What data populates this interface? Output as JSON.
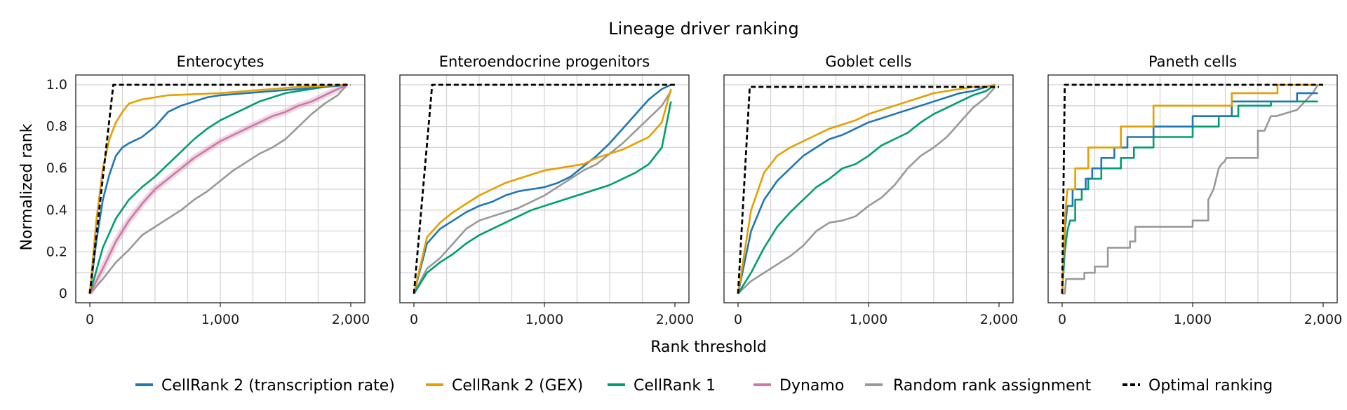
{
  "chart_data": {
    "type": "line",
    "title": "Lineage driver ranking",
    "xlabel": "Rank threshold",
    "ylabel": "Normalized rank",
    "xlim": [
      0,
      2000
    ],
    "ylim": [
      0,
      1.0
    ],
    "xticks": [
      0,
      1000,
      2000
    ],
    "xtick_labels": [
      "0",
      "1,000",
      "2,000"
    ],
    "yticks": [
      0,
      0.2,
      0.4,
      0.6,
      0.8,
      1.0
    ],
    "ytick_labels": [
      "0",
      "0.2",
      "0.4",
      "0.6",
      "0.8",
      "1.0"
    ],
    "grid": true,
    "legend_position": "bottom",
    "series_styles": [
      {
        "key": "cr2_tr",
        "name": "CellRank 2 (transcription rate)",
        "color": "#1f77b4",
        "dash": "solid"
      },
      {
        "key": "cr2_gex",
        "name": "CellRank 2 (GEX)",
        "color": "#e69f00",
        "dash": "solid"
      },
      {
        "key": "cr1",
        "name": "CellRank 1",
        "color": "#009e73",
        "dash": "solid"
      },
      {
        "key": "dynamo",
        "name": "Dynamo",
        "color": "#cc79a7",
        "dash": "solid"
      },
      {
        "key": "random",
        "name": "Random rank assignment",
        "color": "#999999",
        "dash": "solid"
      },
      {
        "key": "optimal",
        "name": "Optimal ranking",
        "color": "#000000",
        "dash": "dashed"
      }
    ],
    "panels": [
      {
        "title": "Enterocytes",
        "show_yticks": true,
        "series": [
          {
            "key": "optimal",
            "x": [
              0,
              180,
              2000
            ],
            "y": [
              0,
              1.0,
              1.0
            ]
          },
          {
            "key": "random",
            "x": [
              0,
              100,
              200,
              300,
              400,
              500,
              600,
              700,
              800,
              900,
              1000,
              1100,
              1200,
              1300,
              1400,
              1500,
              1600,
              1700,
              1800,
              1900,
              1970
            ],
            "y": [
              0,
              0.07,
              0.15,
              0.21,
              0.28,
              0.32,
              0.36,
              0.4,
              0.45,
              0.49,
              0.54,
              0.59,
              0.63,
              0.67,
              0.7,
              0.74,
              0.8,
              0.86,
              0.91,
              0.95,
              1.0
            ]
          },
          {
            "key": "dynamo",
            "x": [
              0,
              100,
              200,
              300,
              400,
              500,
              600,
              700,
              800,
              900,
              1000,
              1100,
              1200,
              1300,
              1400,
              1500,
              1600,
              1700,
              1800,
              1900,
              1970
            ],
            "y": [
              0,
              0.12,
              0.25,
              0.35,
              0.43,
              0.5,
              0.55,
              0.6,
              0.65,
              0.69,
              0.73,
              0.76,
              0.79,
              0.82,
              0.85,
              0.87,
              0.9,
              0.92,
              0.95,
              0.98,
              1.0
            ]
          },
          {
            "key": "cr1",
            "x": [
              0,
              100,
              200,
              300,
              400,
              500,
              600,
              700,
              800,
              900,
              1000,
              1100,
              1200,
              1300,
              1400,
              1500,
              1600,
              1700,
              1800,
              1900,
              1970
            ],
            "y": [
              0,
              0.22,
              0.36,
              0.45,
              0.51,
              0.56,
              0.62,
              0.68,
              0.74,
              0.79,
              0.83,
              0.86,
              0.89,
              0.92,
              0.94,
              0.96,
              0.97,
              0.98,
              0.99,
              0.995,
              1.0
            ]
          },
          {
            "key": "cr2_tr",
            "x": [
              0,
              50,
              100,
              150,
              200,
              250,
              300,
              400,
              500,
              600,
              700,
              800,
              900,
              1000,
              1200,
              1400,
              1600,
              1800,
              1970
            ],
            "y": [
              0,
              0.25,
              0.45,
              0.57,
              0.66,
              0.7,
              0.72,
              0.75,
              0.8,
              0.87,
              0.9,
              0.92,
              0.94,
              0.95,
              0.96,
              0.97,
              0.98,
              0.99,
              1.0
            ]
          },
          {
            "key": "cr2_gex",
            "x": [
              0,
              50,
              100,
              150,
              200,
              250,
              300,
              400,
              500,
              600,
              800,
              1000,
              1200,
              1400,
              1600,
              1800,
              1970
            ],
            "y": [
              0,
              0.35,
              0.6,
              0.74,
              0.82,
              0.87,
              0.91,
              0.93,
              0.94,
              0.95,
              0.955,
              0.96,
              0.97,
              0.98,
              0.99,
              0.995,
              1.0
            ]
          }
        ]
      },
      {
        "title": "Enteroendocrine progenitors",
        "show_yticks": false,
        "series": [
          {
            "key": "optimal",
            "x": [
              0,
              140,
              2000
            ],
            "y": [
              0,
              1.0,
              1.0
            ]
          },
          {
            "key": "random",
            "x": [
              0,
              100,
              200,
              300,
              400,
              500,
              600,
              700,
              800,
              900,
              1000,
              1100,
              1200,
              1300,
              1400,
              1500,
              1600,
              1700,
              1800,
              1900,
              1970
            ],
            "y": [
              0,
              0.12,
              0.17,
              0.24,
              0.31,
              0.35,
              0.37,
              0.39,
              0.41,
              0.44,
              0.47,
              0.51,
              0.55,
              0.59,
              0.62,
              0.67,
              0.72,
              0.78,
              0.84,
              0.9,
              0.97
            ]
          },
          {
            "key": "cr1",
            "x": [
              0,
              100,
              200,
              300,
              400,
              500,
              600,
              700,
              800,
              900,
              1000,
              1100,
              1200,
              1300,
              1400,
              1500,
              1600,
              1700,
              1800,
              1900,
              1970
            ],
            "y": [
              0,
              0.1,
              0.15,
              0.19,
              0.24,
              0.28,
              0.31,
              0.34,
              0.37,
              0.4,
              0.42,
              0.44,
              0.46,
              0.48,
              0.5,
              0.52,
              0.55,
              0.58,
              0.62,
              0.7,
              0.92
            ]
          },
          {
            "key": "cr2_tr",
            "x": [
              0,
              100,
              200,
              300,
              400,
              500,
              600,
              700,
              800,
              900,
              1000,
              1100,
              1200,
              1300,
              1400,
              1500,
              1600,
              1700,
              1800,
              1900,
              1970
            ],
            "y": [
              0,
              0.24,
              0.31,
              0.35,
              0.39,
              0.42,
              0.44,
              0.47,
              0.49,
              0.5,
              0.51,
              0.53,
              0.56,
              0.61,
              0.66,
              0.72,
              0.79,
              0.86,
              0.93,
              0.98,
              1.0
            ]
          },
          {
            "key": "cr2_gex",
            "x": [
              0,
              100,
              200,
              300,
              400,
              500,
              600,
              700,
              800,
              900,
              1000,
              1100,
              1200,
              1300,
              1400,
              1500,
              1600,
              1700,
              1800,
              1900,
              1970
            ],
            "y": [
              0,
              0.27,
              0.34,
              0.39,
              0.43,
              0.47,
              0.5,
              0.53,
              0.55,
              0.57,
              0.59,
              0.6,
              0.61,
              0.62,
              0.65,
              0.67,
              0.69,
              0.72,
              0.75,
              0.82,
              0.98
            ]
          }
        ]
      },
      {
        "title": "Goblet cells",
        "show_yticks": false,
        "series": [
          {
            "key": "optimal",
            "x": [
              0,
              90,
              2000
            ],
            "y": [
              0,
              0.99,
              0.99
            ]
          },
          {
            "key": "random",
            "x": [
              0,
              100,
              200,
              300,
              400,
              500,
              600,
              700,
              800,
              900,
              1000,
              1100,
              1200,
              1300,
              1400,
              1500,
              1600,
              1700,
              1800,
              1900,
              1970
            ],
            "y": [
              0,
              0.06,
              0.1,
              0.14,
              0.18,
              0.23,
              0.3,
              0.34,
              0.35,
              0.37,
              0.42,
              0.46,
              0.52,
              0.6,
              0.66,
              0.7,
              0.75,
              0.82,
              0.89,
              0.94,
              0.99
            ]
          },
          {
            "key": "cr1",
            "x": [
              0,
              100,
              200,
              300,
              400,
              500,
              600,
              700,
              800,
              900,
              1000,
              1100,
              1200,
              1300,
              1400,
              1500,
              1600,
              1700,
              1800,
              1900,
              1970
            ],
            "y": [
              0,
              0.1,
              0.22,
              0.32,
              0.39,
              0.45,
              0.51,
              0.55,
              0.6,
              0.62,
              0.66,
              0.71,
              0.74,
              0.77,
              0.82,
              0.86,
              0.89,
              0.92,
              0.95,
              0.97,
              1.0
            ]
          },
          {
            "key": "cr2_tr",
            "x": [
              0,
              100,
              200,
              300,
              400,
              500,
              600,
              700,
              800,
              900,
              1000,
              1100,
              1200,
              1300,
              1400,
              1500,
              1600,
              1700,
              1800,
              1900,
              1970
            ],
            "y": [
              0,
              0.3,
              0.45,
              0.54,
              0.6,
              0.66,
              0.7,
              0.74,
              0.76,
              0.79,
              0.82,
              0.84,
              0.86,
              0.88,
              0.9,
              0.92,
              0.94,
              0.96,
              0.97,
              0.99,
              1.0
            ]
          },
          {
            "key": "cr2_gex",
            "x": [
              0,
              100,
              200,
              300,
              400,
              500,
              600,
              700,
              800,
              900,
              1000,
              1100,
              1200,
              1300,
              1400,
              1500,
              1600,
              1700,
              1800,
              1900,
              1970
            ],
            "y": [
              0,
              0.4,
              0.58,
              0.66,
              0.7,
              0.73,
              0.76,
              0.79,
              0.81,
              0.83,
              0.86,
              0.88,
              0.9,
              0.92,
              0.94,
              0.96,
              0.97,
              0.98,
              0.99,
              0.99,
              1.0
            ]
          }
        ]
      },
      {
        "title": "Paneth cells",
        "show_yticks": false,
        "series": [
          {
            "key": "optimal",
            "x": [
              0,
              20,
              2000
            ],
            "y": [
              0,
              1.0,
              1.0
            ]
          },
          {
            "key": "random",
            "x": [
              0,
              20,
              30,
              170,
              170,
              250,
              250,
              350,
              350,
              520,
              520,
              560,
              560,
              1000,
              1000,
              1120,
              1120,
              1160,
              1180,
              1200,
              1220,
              1240,
              1260,
              1500,
              1500,
              1550,
              1600,
              1640,
              1800,
              1860,
              1920,
              1960
            ],
            "y": [
              0,
              0,
              0.07,
              0.07,
              0.1,
              0.1,
              0.13,
              0.13,
              0.22,
              0.22,
              0.25,
              0.25,
              0.32,
              0.32,
              0.35,
              0.35,
              0.45,
              0.5,
              0.55,
              0.6,
              0.62,
              0.63,
              0.65,
              0.65,
              0.78,
              0.78,
              0.85,
              0.85,
              0.88,
              0.92,
              0.96,
              1.0
            ]
          },
          {
            "key": "cr1",
            "x": [
              0,
              20,
              40,
              60,
              100,
              100,
              150,
              150,
              200,
              200,
              300,
              300,
              450,
              450,
              550,
              550,
              700,
              700,
              1000,
              1000,
              1200,
              1200,
              1350,
              1350,
              1600,
              1600,
              1960
            ],
            "y": [
              0,
              0.2,
              0.3,
              0.35,
              0.35,
              0.45,
              0.45,
              0.5,
              0.5,
              0.55,
              0.55,
              0.6,
              0.6,
              0.65,
              0.65,
              0.7,
              0.7,
              0.75,
              0.75,
              0.8,
              0.8,
              0.85,
              0.85,
              0.9,
              0.9,
              0.92,
              0.92
            ]
          },
          {
            "key": "cr2_tr",
            "x": [
              0,
              20,
              40,
              80,
              80,
              180,
              180,
              230,
              230,
              300,
              300,
              400,
              400,
              500,
              500,
              700,
              700,
              1000,
              1000,
              1300,
              1300,
              1800,
              1800,
              1960
            ],
            "y": [
              0,
              0.3,
              0.42,
              0.42,
              0.5,
              0.5,
              0.55,
              0.55,
              0.6,
              0.6,
              0.65,
              0.65,
              0.7,
              0.7,
              0.75,
              0.75,
              0.8,
              0.8,
              0.85,
              0.85,
              0.92,
              0.92,
              0.96,
              0.96
            ]
          },
          {
            "key": "cr2_gex",
            "x": [
              0,
              20,
              40,
              100,
              100,
              200,
              200,
              450,
              450,
              700,
              700,
              1300,
              1300,
              1650,
              1650,
              1960
            ],
            "y": [
              0,
              0.35,
              0.5,
              0.5,
              0.6,
              0.6,
              0.7,
              0.7,
              0.8,
              0.8,
              0.9,
              0.9,
              0.96,
              0.96,
              1.0,
              1.0
            ]
          }
        ]
      }
    ]
  }
}
